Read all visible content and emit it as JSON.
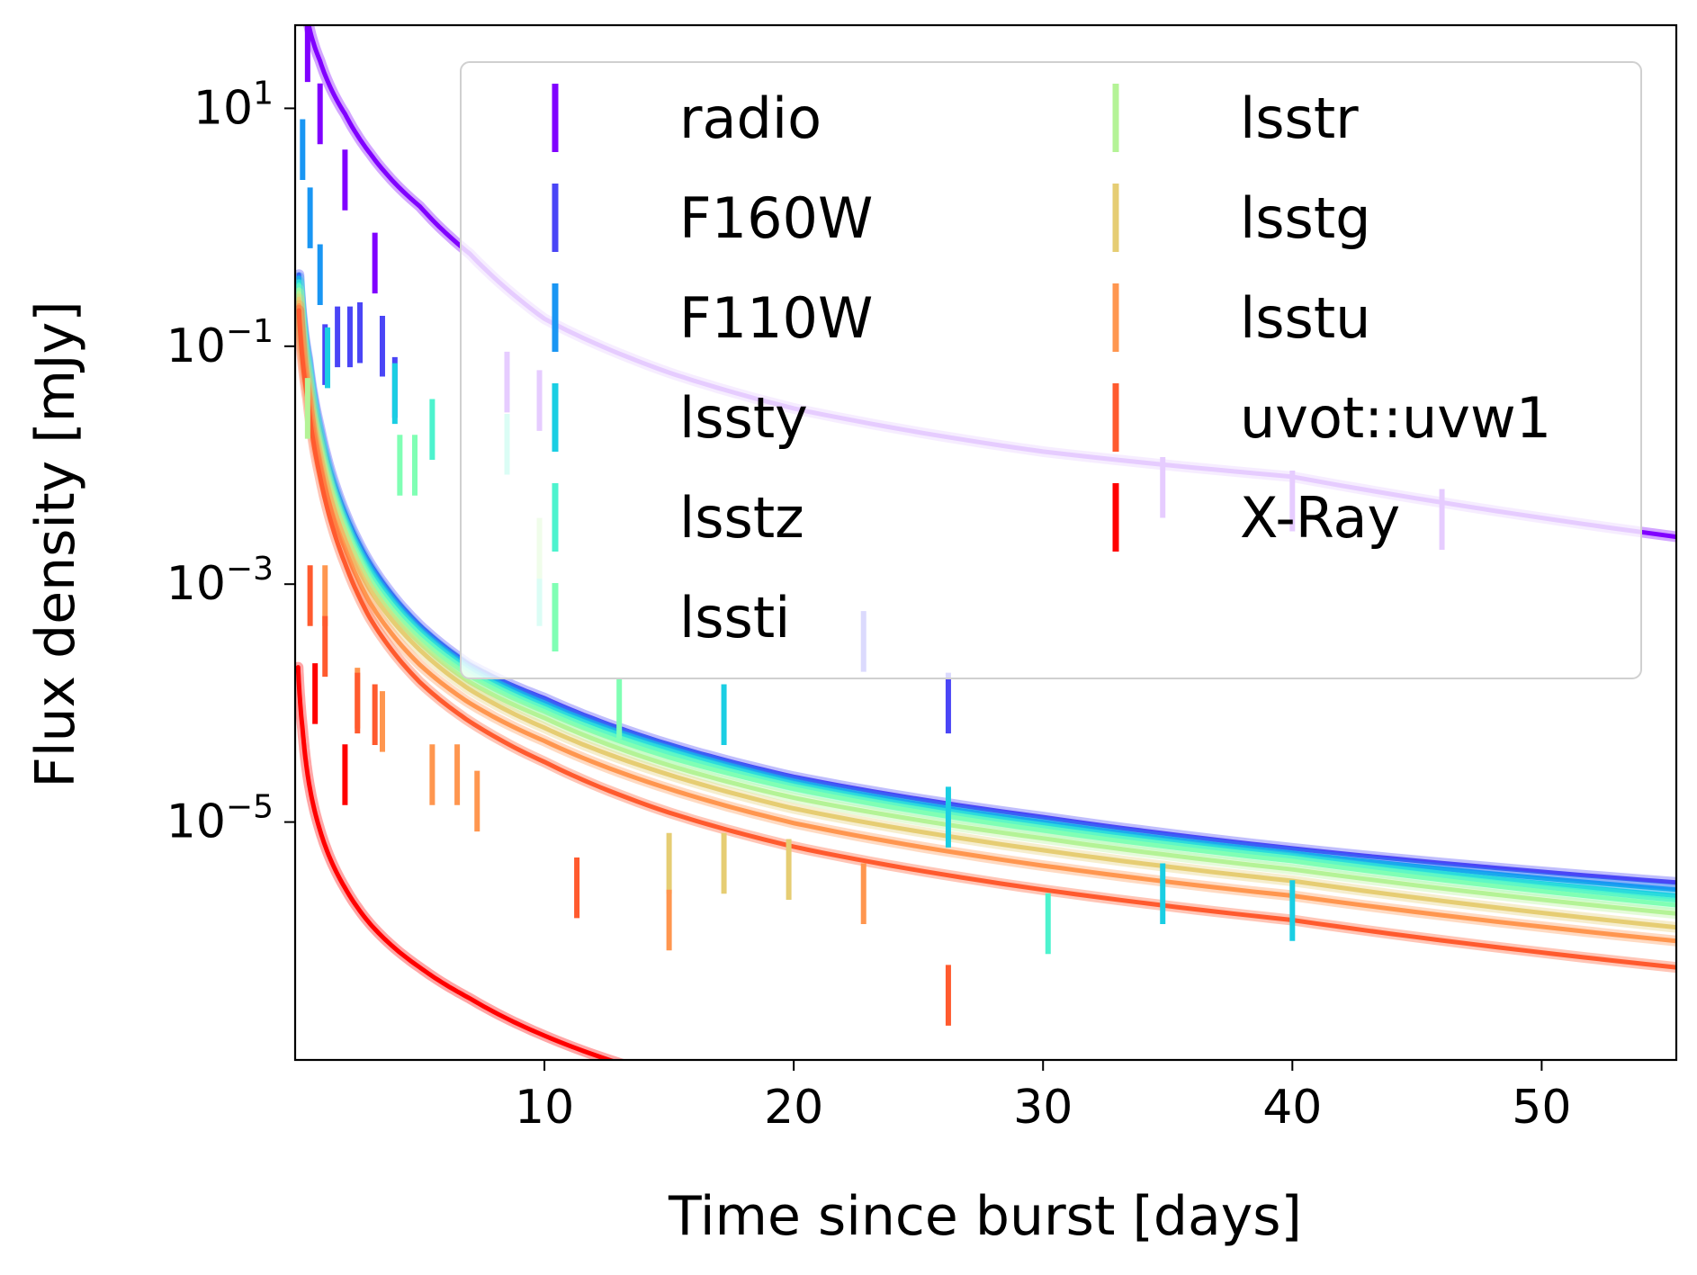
{
  "chart_data": {
    "type": "line",
    "xlabel": "Time since burst [days]",
    "ylabel": "Flux density [mJy]",
    "xscale": "linear",
    "yscale": "log",
    "xlim": [
      0.0,
      55.4
    ],
    "ylim": [
      1e-07,
      50
    ],
    "xticks": [
      10,
      20,
      30,
      40,
      50
    ],
    "yticks": [
      {
        "value": 10,
        "base": "10",
        "exp": "1"
      },
      {
        "value": 0.1,
        "base": "10",
        "exp": "−1"
      },
      {
        "value": 0.001,
        "base": "10",
        "exp": "−3"
      },
      {
        "value": 1e-05,
        "base": "10",
        "exp": "−5"
      }
    ],
    "grid": false,
    "legend_position": "upper-right, two columns",
    "series": [
      {
        "name": "radio",
        "color": "#8000ff",
        "model": [
          [
            0.15,
            150
          ],
          [
            0.3,
            95
          ],
          [
            0.5,
            55
          ],
          [
            1,
            25
          ],
          [
            2,
            9
          ],
          [
            3,
            4.2
          ],
          [
            5,
            1.5
          ],
          [
            7,
            0.6
          ],
          [
            10,
            0.17
          ],
          [
            15,
            0.06
          ],
          [
            20,
            0.03
          ],
          [
            30,
            0.013
          ],
          [
            40,
            0.008
          ],
          [
            55.4,
            0.0025
          ]
        ],
        "obs": [
          [
            0.2,
            160
          ],
          [
            0.5,
            30
          ],
          [
            1.0,
            9
          ],
          [
            2.0,
            2.5
          ],
          [
            3.2,
            0.5
          ],
          [
            8.5,
            0.05
          ],
          [
            9.8,
            0.035
          ],
          [
            34.8,
            0.0065
          ],
          [
            40.0,
            0.005
          ],
          [
            46.0,
            0.0035
          ]
        ]
      },
      {
        "name": "F160W",
        "color": "#4a45f6",
        "model": [
          [
            0.15,
            0.4
          ],
          [
            0.5,
            0.08
          ],
          [
            1,
            0.02
          ],
          [
            2,
            0.004
          ],
          [
            3,
            0.0015
          ],
          [
            5,
            0.00045
          ],
          [
            7,
            0.00021
          ],
          [
            10,
            0.00011
          ],
          [
            15,
            4.5e-05
          ],
          [
            20,
            2.4e-05
          ],
          [
            30,
            1.1e-05
          ],
          [
            40,
            6e-06
          ],
          [
            55.4,
            3.1e-06
          ]
        ],
        "obs": [
          [
            1.2,
            0.085
          ],
          [
            1.7,
            0.12
          ],
          [
            2.2,
            0.12
          ],
          [
            2.6,
            0.13
          ],
          [
            3.5,
            0.1
          ],
          [
            4.0,
            0.045
          ],
          [
            22.8,
            0.00033
          ],
          [
            26.2,
            0.0001
          ]
        ]
      },
      {
        "name": "F110W",
        "color": "#1996f3",
        "model": [
          [
            0.15,
            0.38
          ],
          [
            0.5,
            0.075
          ],
          [
            1,
            0.018
          ],
          [
            2,
            0.0037
          ],
          [
            3,
            0.0014
          ],
          [
            5,
            0.00042
          ],
          [
            7,
            0.0002
          ],
          [
            10,
            0.0001
          ],
          [
            15,
            4.2e-05
          ],
          [
            20,
            2.2e-05
          ],
          [
            30,
            1e-05
          ],
          [
            40,
            5.5e-06
          ],
          [
            55.4,
            2.7e-06
          ]
        ],
        "obs": [
          [
            0.3,
            4.5
          ],
          [
            0.6,
            1.2
          ],
          [
            1.0,
            0.4
          ]
        ]
      },
      {
        "name": "lssty",
        "color": "#1acee3",
        "model": [
          [
            0.15,
            0.35
          ],
          [
            0.5,
            0.07
          ],
          [
            1,
            0.017
          ],
          [
            2,
            0.0034
          ],
          [
            3,
            0.0013
          ],
          [
            5,
            0.0004
          ],
          [
            7,
            0.00019
          ],
          [
            10,
            9.5e-05
          ],
          [
            15,
            4e-05
          ],
          [
            20,
            2.1e-05
          ],
          [
            30,
            9.5e-06
          ],
          [
            40,
            5.2e-06
          ],
          [
            55.4,
            2.4e-06
          ]
        ],
        "obs": [
          [
            1.3,
            0.08
          ],
          [
            4.0,
            0.04
          ],
          [
            17.2,
            8e-05
          ],
          [
            26.2,
            1.1e-05
          ],
          [
            34.8,
            2.5e-06
          ],
          [
            40.0,
            1.8e-06
          ]
        ]
      },
      {
        "name": "lsstz",
        "color": "#4df3ce",
        "model": [
          [
            0.15,
            0.33
          ],
          [
            0.5,
            0.066
          ],
          [
            1,
            0.016
          ],
          [
            2,
            0.0032
          ],
          [
            3,
            0.0012
          ],
          [
            5,
            0.00038
          ],
          [
            7,
            0.00018
          ],
          [
            10,
            9e-05
          ],
          [
            15,
            3.8e-05
          ],
          [
            20,
            2e-05
          ],
          [
            30,
            9e-06
          ],
          [
            40,
            5e-06
          ],
          [
            55.4,
            2.2e-06
          ]
        ],
        "obs": [
          [
            5.5,
            0.02
          ],
          [
            8.5,
            0.015
          ],
          [
            9.8,
            0.0008
          ],
          [
            30.2,
            1.4e-06
          ]
        ]
      },
      {
        "name": "lssti",
        "color": "#80ffb4",
        "model": [
          [
            0.15,
            0.3
          ],
          [
            0.5,
            0.06
          ],
          [
            1,
            0.015
          ],
          [
            2,
            0.003
          ],
          [
            3,
            0.0011
          ],
          [
            5,
            0.00035
          ],
          [
            7,
            0.00017
          ],
          [
            10,
            8.5e-05
          ],
          [
            15,
            3.5e-05
          ],
          [
            20,
            1.9e-05
          ],
          [
            30,
            8.5e-06
          ],
          [
            40,
            4.7e-06
          ],
          [
            55.4,
            2e-06
          ]
        ],
        "obs": [
          [
            4.2,
            0.01
          ],
          [
            4.8,
            0.01
          ],
          [
            13.0,
            9e-05
          ]
        ]
      },
      {
        "name": "lsstr",
        "color": "#b4f396",
        "model": [
          [
            0.15,
            0.28
          ],
          [
            0.5,
            0.055
          ],
          [
            1,
            0.014
          ],
          [
            2,
            0.0028
          ],
          [
            3,
            0.001
          ],
          [
            5,
            0.00032
          ],
          [
            7,
            0.00015
          ],
          [
            10,
            7.5e-05
          ],
          [
            15,
            3e-05
          ],
          [
            20,
            1.6e-05
          ],
          [
            30,
            7.3e-06
          ],
          [
            40,
            4e-06
          ],
          [
            55.4,
            1.7e-06
          ]
        ],
        "obs": [
          [
            0.5,
            0.03
          ],
          [
            9.8,
            0.002
          ]
        ]
      },
      {
        "name": "lsstg",
        "color": "#e6cd73",
        "model": [
          [
            0.15,
            0.25
          ],
          [
            0.5,
            0.05
          ],
          [
            1,
            0.012
          ],
          [
            2,
            0.0024
          ],
          [
            3,
            0.0009
          ],
          [
            5,
            0.00028
          ],
          [
            7,
            0.00013
          ],
          [
            10,
            6.2e-05
          ],
          [
            15,
            2.5e-05
          ],
          [
            20,
            1.3e-05
          ],
          [
            30,
            5.8e-06
          ],
          [
            40,
            3.2e-06
          ],
          [
            55.4,
            1.3e-06
          ]
        ],
        "obs": [
          [
            15.0,
            4.5e-06
          ],
          [
            17.2,
            4.5e-06
          ],
          [
            19.8,
            4e-06
          ]
        ]
      },
      {
        "name": "lsstu",
        "color": "#ff964f",
        "model": [
          [
            0.15,
            0.22
          ],
          [
            0.5,
            0.043
          ],
          [
            1,
            0.01
          ],
          [
            2,
            0.002
          ],
          [
            3,
            0.0007
          ],
          [
            5,
            0.00021
          ],
          [
            7,
            0.0001
          ],
          [
            10,
            4.8e-05
          ],
          [
            15,
            1.9e-05
          ],
          [
            20,
            9.8e-06
          ],
          [
            30,
            4.3e-06
          ],
          [
            40,
            2.4e-06
          ],
          [
            55.4,
            1e-06
          ]
        ],
        "obs": [
          [
            1.2,
            0.0008
          ],
          [
            2.5,
            0.00011
          ],
          [
            3.5,
            7e-05
          ],
          [
            5.5,
            2.5e-05
          ],
          [
            6.5,
            2.5e-05
          ],
          [
            7.3,
            1.5e-05
          ],
          [
            15.0,
            1.5e-06
          ],
          [
            22.8,
            2.5e-06
          ]
        ]
      },
      {
        "name": "uvot::uvw1",
        "color": "#ff5a2e",
        "model": [
          [
            0.15,
            0.2
          ],
          [
            0.5,
            0.036
          ],
          [
            1,
            0.008
          ],
          [
            2,
            0.0015
          ],
          [
            3,
            0.00052
          ],
          [
            5,
            0.00015
          ],
          [
            7,
            7e-05
          ],
          [
            10,
            3.2e-05
          ],
          [
            15,
            1.2e-05
          ],
          [
            20,
            6.2e-06
          ],
          [
            30,
            2.7e-06
          ],
          [
            40,
            1.5e-06
          ],
          [
            55.4,
            6e-07
          ]
        ],
        "obs": [
          [
            0.6,
            0.0008
          ],
          [
            1.2,
            0.0003
          ],
          [
            2.5,
            0.0001
          ],
          [
            3.2,
            8e-05
          ],
          [
            11.3,
            2.8e-06
          ],
          [
            26.2,
            3.5e-07
          ]
        ]
      },
      {
        "name": "X-Ray",
        "color": "#ff0000",
        "model": [
          [
            0.12,
            0.0002
          ],
          [
            0.3,
            6e-05
          ],
          [
            0.5,
            2.5e-05
          ],
          [
            1,
            8.5e-06
          ],
          [
            2,
            2.8e-06
          ],
          [
            3,
            1.4e-06
          ],
          [
            5,
            6e-07
          ],
          [
            7,
            3.3e-07
          ],
          [
            10,
            1.6e-07
          ],
          [
            15,
            7e-08
          ]
        ],
        "obs": [
          [
            0.8,
            0.00012
          ],
          [
            2.0,
            2.5e-05
          ]
        ]
      }
    ]
  }
}
